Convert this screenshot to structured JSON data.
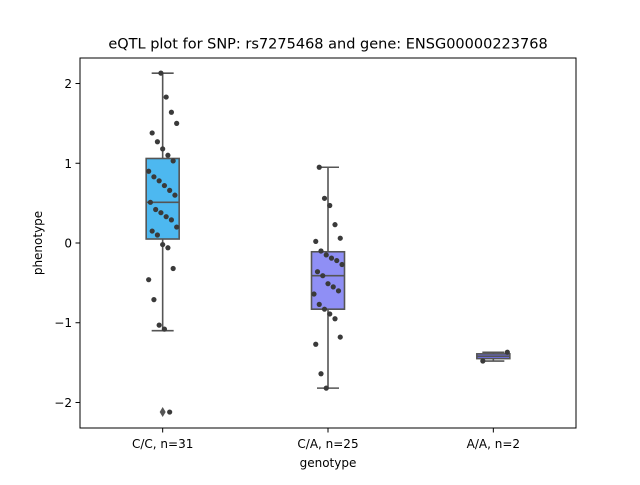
{
  "chart_data": {
    "type": "box",
    "title": "eQTL plot for SNP: rs7275468 and gene: ENSG00000223768",
    "xlabel": "genotype",
    "ylabel": "phenotype",
    "ylim": [
      -2.32,
      2.32
    ],
    "yticks": [
      -2,
      -1,
      0,
      1,
      2
    ],
    "ytick_labels": [
      "−2",
      "−1",
      "0",
      "1",
      "2"
    ],
    "grid": false,
    "point_color": "#3a3a3a",
    "edge_color": "#555555",
    "groups": [
      {
        "label": "C/C, n=31",
        "color": "#4db8f0",
        "box": {
          "q1": 0.05,
          "median": 0.51,
          "q3": 1.06,
          "whisker_low": -1.1,
          "whisker_high": 2.13
        },
        "outliers": [
          -2.12
        ],
        "points": [
          2.13,
          1.83,
          1.64,
          1.5,
          1.38,
          1.27,
          1.18,
          1.1,
          1.03,
          0.9,
          0.83,
          0.78,
          0.72,
          0.66,
          0.6,
          0.51,
          0.42,
          0.38,
          0.33,
          0.29,
          0.2,
          0.15,
          0.1,
          -0.02,
          -0.06,
          -0.32,
          -0.46,
          -0.71,
          -1.03,
          -1.08,
          -2.12
        ]
      },
      {
        "label": "C/A, n=25",
        "color": "#8f8ff5",
        "box": {
          "q1": -0.83,
          "median": -0.41,
          "q3": -0.11,
          "whisker_low": -1.82,
          "whisker_high": 0.95
        },
        "outliers": [],
        "points": [
          0.95,
          0.56,
          0.47,
          0.23,
          0.06,
          0.02,
          -0.1,
          -0.15,
          -0.19,
          -0.22,
          -0.27,
          -0.36,
          -0.41,
          -0.51,
          -0.55,
          -0.6,
          -0.64,
          -0.77,
          -0.83,
          -0.89,
          -0.95,
          -1.18,
          -1.27,
          -1.64,
          -1.82
        ]
      },
      {
        "label": "A/A, n=2",
        "color": "#7070f0",
        "box": {
          "q1": -1.45,
          "median": -1.42,
          "q3": -1.39,
          "whisker_low": -1.48,
          "whisker_high": -1.37
        },
        "outliers": [],
        "points": [
          -1.37,
          -1.48
        ]
      }
    ]
  }
}
